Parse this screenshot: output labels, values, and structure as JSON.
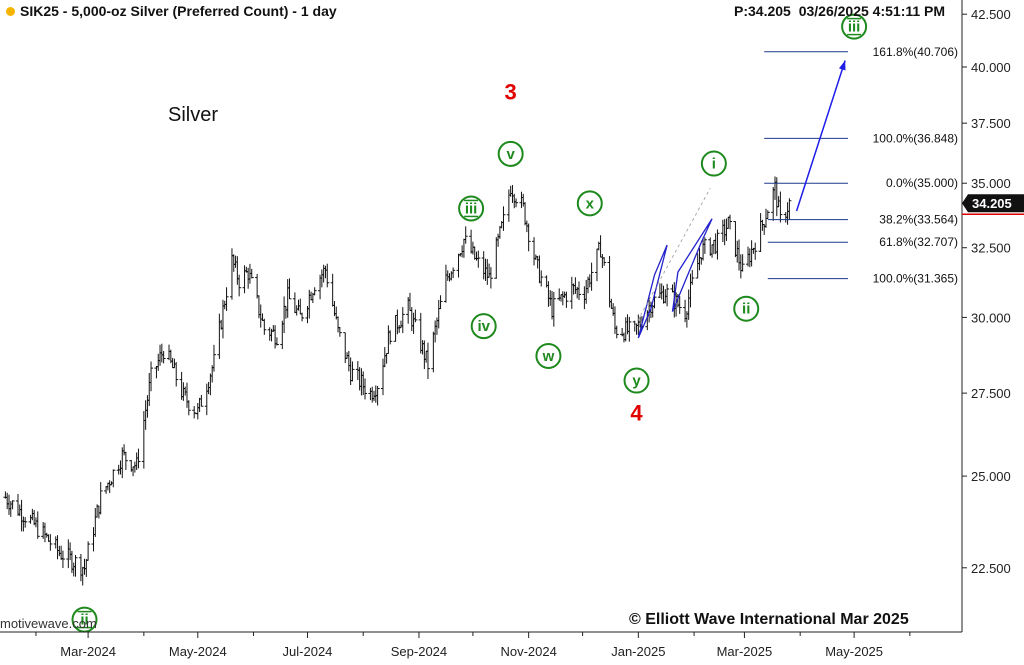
{
  "header": {
    "symbol_title": "SIK25 - 5,000-oz Silver (Preferred Count) - 1 day",
    "price_readout": "P:34.205",
    "timestamp": "03/26/2025 4:51:11 PM",
    "status_dot_color": "#f5b400"
  },
  "chart_label": "Silver",
  "copyright": "© Elliott Wave International Mar 2025",
  "watermark": "motivewave.com",
  "chart_data": {
    "type": "line",
    "style": "ohlc-bars",
    "title": "",
    "xlabel": "",
    "ylabel": "",
    "x_ticks": [
      "Mar-2024",
      "May-2024",
      "Jul-2024",
      "Sep-2024",
      "Nov-2024",
      "Jan-2025",
      "Mar-2025",
      "May-2025"
    ],
    "y_ticks": [
      "22.500",
      "25.000",
      "27.500",
      "30.000",
      "32.500",
      "35.000",
      "37.500",
      "40.000",
      "42.500"
    ],
    "ylim": [
      20.9,
      43.2
    ],
    "y_scale": "log",
    "grid": false,
    "last_price_label": "34.205",
    "series": [
      {
        "x": [
          "2024-01-15",
          "2024-02-01",
          "2024-02-14",
          "2024-02-28",
          "2024-03-08",
          "2024-03-20",
          "2024-03-28",
          "2024-04-05",
          "2024-04-12",
          "2024-04-17",
          "2024-04-23",
          "2024-05-01",
          "2024-05-10",
          "2024-05-20",
          "2024-05-24",
          "2024-05-29",
          "2024-06-07",
          "2024-06-14",
          "2024-06-20",
          "2024-06-27",
          "2024-07-05",
          "2024-07-11",
          "2024-07-18",
          "2024-07-25",
          "2024-08-05",
          "2024-08-09",
          "2024-08-16",
          "2024-08-26",
          "2024-09-06",
          "2024-09-16",
          "2024-09-26",
          "2024-10-03",
          "2024-10-10",
          "2024-10-18",
          "2024-10-22",
          "2024-10-29",
          "2024-11-05",
          "2024-11-14",
          "2024-11-25",
          "2024-12-02",
          "2024-12-11",
          "2024-12-19",
          "2024-12-30",
          "2025-01-08",
          "2025-01-16",
          "2025-01-27",
          "2025-02-05",
          "2025-02-14",
          "2025-02-20",
          "2025-02-28",
          "2025-03-10",
          "2025-03-18",
          "2025-03-21",
          "2025-03-26"
        ],
        "close": [
          24.4,
          23.6,
          22.9,
          22.5,
          24.4,
          25.6,
          25.3,
          28.0,
          28.9,
          28.3,
          27.4,
          26.9,
          28.5,
          32.0,
          31.3,
          31.6,
          29.6,
          29.4,
          30.7,
          30.0,
          31.2,
          31.7,
          29.5,
          28.2,
          27.5,
          27.8,
          29.5,
          30.3,
          28.4,
          31.3,
          32.8,
          32.0,
          31.4,
          33.5,
          34.9,
          34.0,
          31.9,
          30.3,
          31.0,
          30.9,
          32.5,
          29.6,
          29.5,
          30.5,
          30.9,
          30.2,
          32.4,
          32.7,
          33.4,
          31.6,
          33.2,
          34.8,
          33.5,
          34.205
        ]
      }
    ],
    "fib_levels_upper": [
      {
        "label": "0.0%(35.000)",
        "value": 35.0
      },
      {
        "label": "100.0%(36.848)",
        "value": 36.848
      },
      {
        "label": "161.8%(40.706)",
        "value": 40.706
      }
    ],
    "fib_levels_lower": [
      {
        "label": "38.2%(33.564)",
        "value": 33.564
      },
      {
        "label": "61.8%(32.707)",
        "value": 32.707
      },
      {
        "label": "100.0%(31.365)",
        "value": 31.365
      }
    ],
    "wave_labels": [
      {
        "text": "ii",
        "x": "2024-02-28",
        "y": 21.2,
        "style": "circle-double"
      },
      {
        "text": "iii",
        "x": "2024-09-30",
        "y": 34.0,
        "style": "circle-double"
      },
      {
        "text": "iv",
        "x": "2024-10-07",
        "y": 29.7,
        "style": "circle"
      },
      {
        "text": "v",
        "x": "2024-10-22",
        "y": 36.2,
        "style": "circle"
      },
      {
        "text": "w",
        "x": "2024-11-12",
        "y": 28.7,
        "style": "circle"
      },
      {
        "text": "x",
        "x": "2024-12-05",
        "y": 34.2,
        "style": "circle"
      },
      {
        "text": "y",
        "x": "2024-12-31",
        "y": 27.9,
        "style": "circle"
      },
      {
        "text": "i",
        "x": "2025-02-12",
        "y": 35.8,
        "style": "circle"
      },
      {
        "text": "ii",
        "x": "2025-03-02",
        "y": 30.3,
        "style": "circle"
      },
      {
        "text": "iii",
        "x": "2025-05-01",
        "y": 41.9,
        "style": "circle-double"
      },
      {
        "text": "3",
        "x": "2024-10-22",
        "y": 38.9,
        "style": "red"
      },
      {
        "text": "4",
        "x": "2024-12-31",
        "y": 26.9,
        "style": "red"
      }
    ],
    "projection_arrow": {
      "x1": "2025-03-30",
      "y1": 33.9,
      "x2": "2025-04-26",
      "y2": 40.3
    },
    "colors": {
      "bars": "#111111",
      "fib": "#1c3a8c",
      "arrow": "#1e1ee8",
      "wave_green": "#1e8a1e",
      "wave_red": "#e00000",
      "channel": "#2222cc"
    }
  }
}
